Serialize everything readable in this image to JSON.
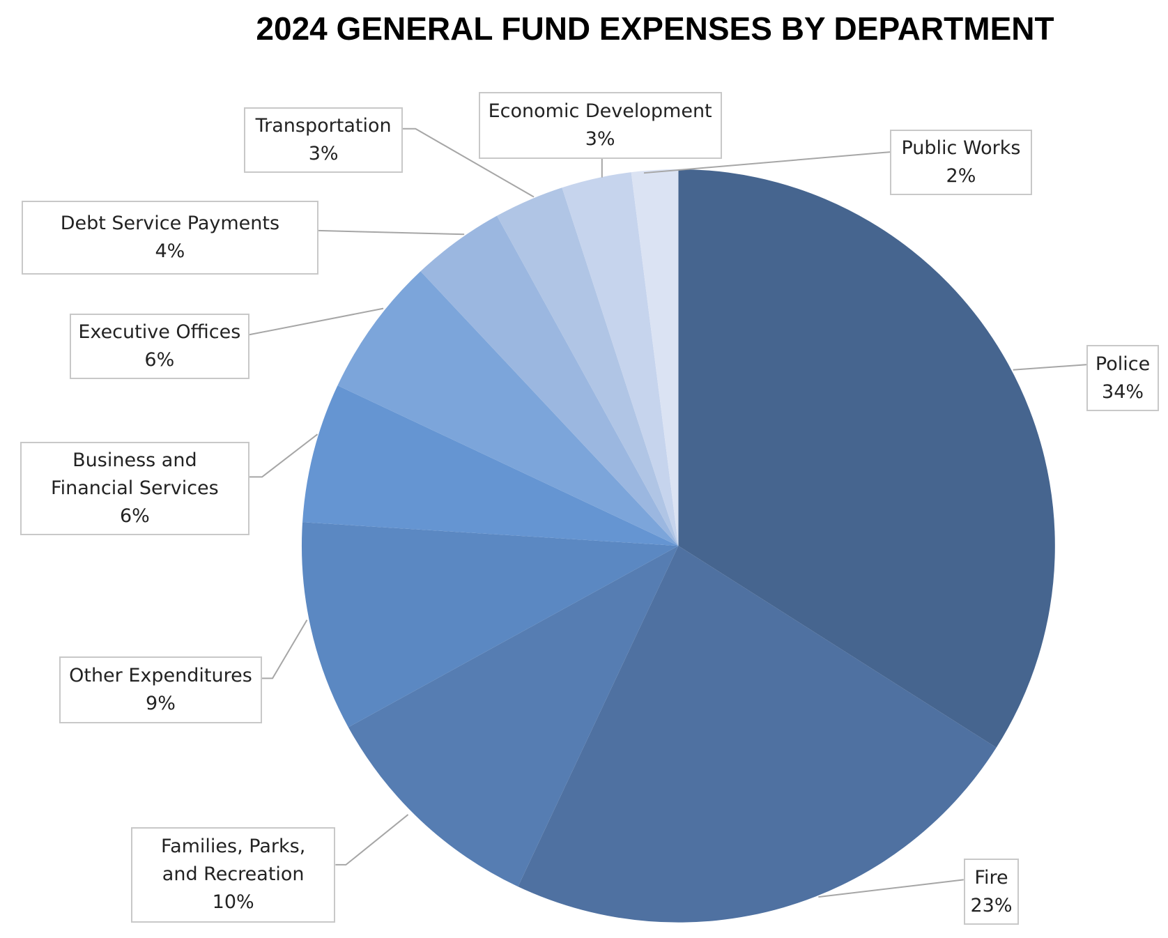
{
  "chart_data": {
    "type": "pie",
    "title": "2024 GENERAL FUND EXPENSES BY DEPARTMENT",
    "slices": [
      {
        "label": "Police",
        "value": 34,
        "display": "34%",
        "color": "#46658f"
      },
      {
        "label": "Fire",
        "value": 23,
        "display": "23%",
        "color": "#4f71a1"
      },
      {
        "label": "Families, Parks, and Recreation",
        "value": 10,
        "display": "10%",
        "color": "#567db2"
      },
      {
        "label": "Other Expenditures",
        "value": 9,
        "display": "9%",
        "color": "#5b88c2"
      },
      {
        "label": "Business and Financial Services",
        "value": 6,
        "display": "6%",
        "color": "#6595d2"
      },
      {
        "label": "Executive Offices",
        "value": 6,
        "display": "6%",
        "color": "#7ca5da"
      },
      {
        "label": "Debt Service Payments",
        "value": 4,
        "display": "4%",
        "color": "#9bb7e0"
      },
      {
        "label": "Transportation",
        "value": 3,
        "display": "3%",
        "color": "#b0c5e5"
      },
      {
        "label": "Economic Development",
        "value": 3,
        "display": "3%",
        "color": "#c6d4ed"
      },
      {
        "label": "Public Works",
        "value": 2,
        "display": "2%",
        "color": "#dbe3f3"
      }
    ],
    "start": "12 o'clock",
    "direction": "clockwise",
    "legend": "none (callout labels)"
  }
}
